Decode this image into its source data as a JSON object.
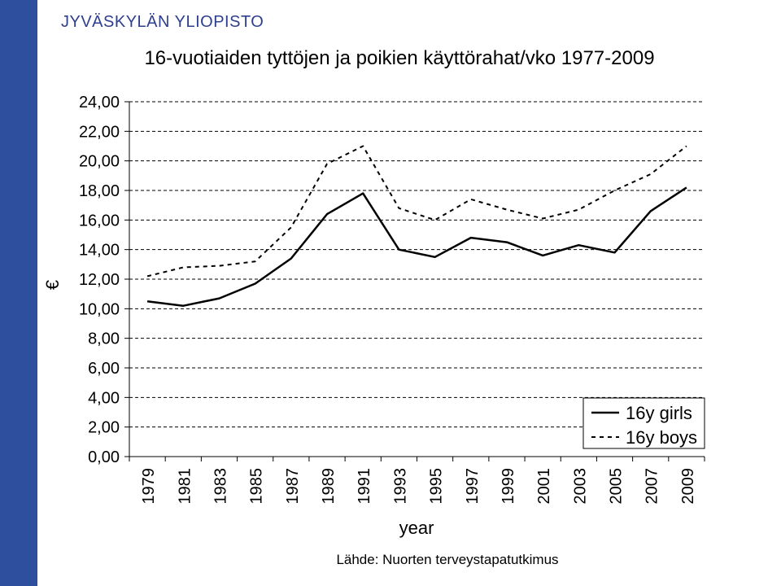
{
  "header": {
    "brand": "JYVÄSKYLÄN YLIOPISTO",
    "title": "16-vuotiaiden tyttöjen ja poikien käyttörahat/vko 1977-2009"
  },
  "footer": {
    "source": "Lähde: Nuorten terveystapatutkimus"
  },
  "colors": {
    "band": "#2e4f9e",
    "brand_text": "#2e3f8f",
    "line": "#000000",
    "grid": "#000000"
  },
  "chart_data": {
    "type": "line",
    "title": "16-vuotiaiden tyttöjen ja poikien käyttörahat/vko 1977-2009",
    "xlabel": "year",
    "ylabel": "€",
    "categories": [
      "1979",
      "1981",
      "1983",
      "1985",
      "1987",
      "1989",
      "1991",
      "1993",
      "1995",
      "1997",
      "1999",
      "2001",
      "2003",
      "2005",
      "2007",
      "2009"
    ],
    "ylim": [
      0,
      24
    ],
    "yticks": [
      "0,00",
      "2,00",
      "4,00",
      "6,00",
      "8,00",
      "10,00",
      "12,00",
      "14,00",
      "16,00",
      "18,00",
      "20,00",
      "22,00",
      "24,00"
    ],
    "grid": "horizontal dashed",
    "legend": "bottom-right",
    "series": [
      {
        "name": "16y girls",
        "style": "solid",
        "values": [
          10.5,
          10.2,
          10.7,
          11.7,
          13.4,
          16.4,
          17.8,
          14.0,
          13.5,
          14.8,
          14.5,
          13.6,
          14.3,
          13.8,
          16.6,
          18.2
        ]
      },
      {
        "name": "16y boys",
        "style": "dashed",
        "values": [
          12.2,
          12.8,
          12.9,
          13.2,
          15.5,
          19.8,
          21.0,
          16.8,
          16.0,
          17.4,
          16.7,
          16.1,
          16.7,
          18.0,
          19.1,
          21.0
        ]
      }
    ]
  }
}
